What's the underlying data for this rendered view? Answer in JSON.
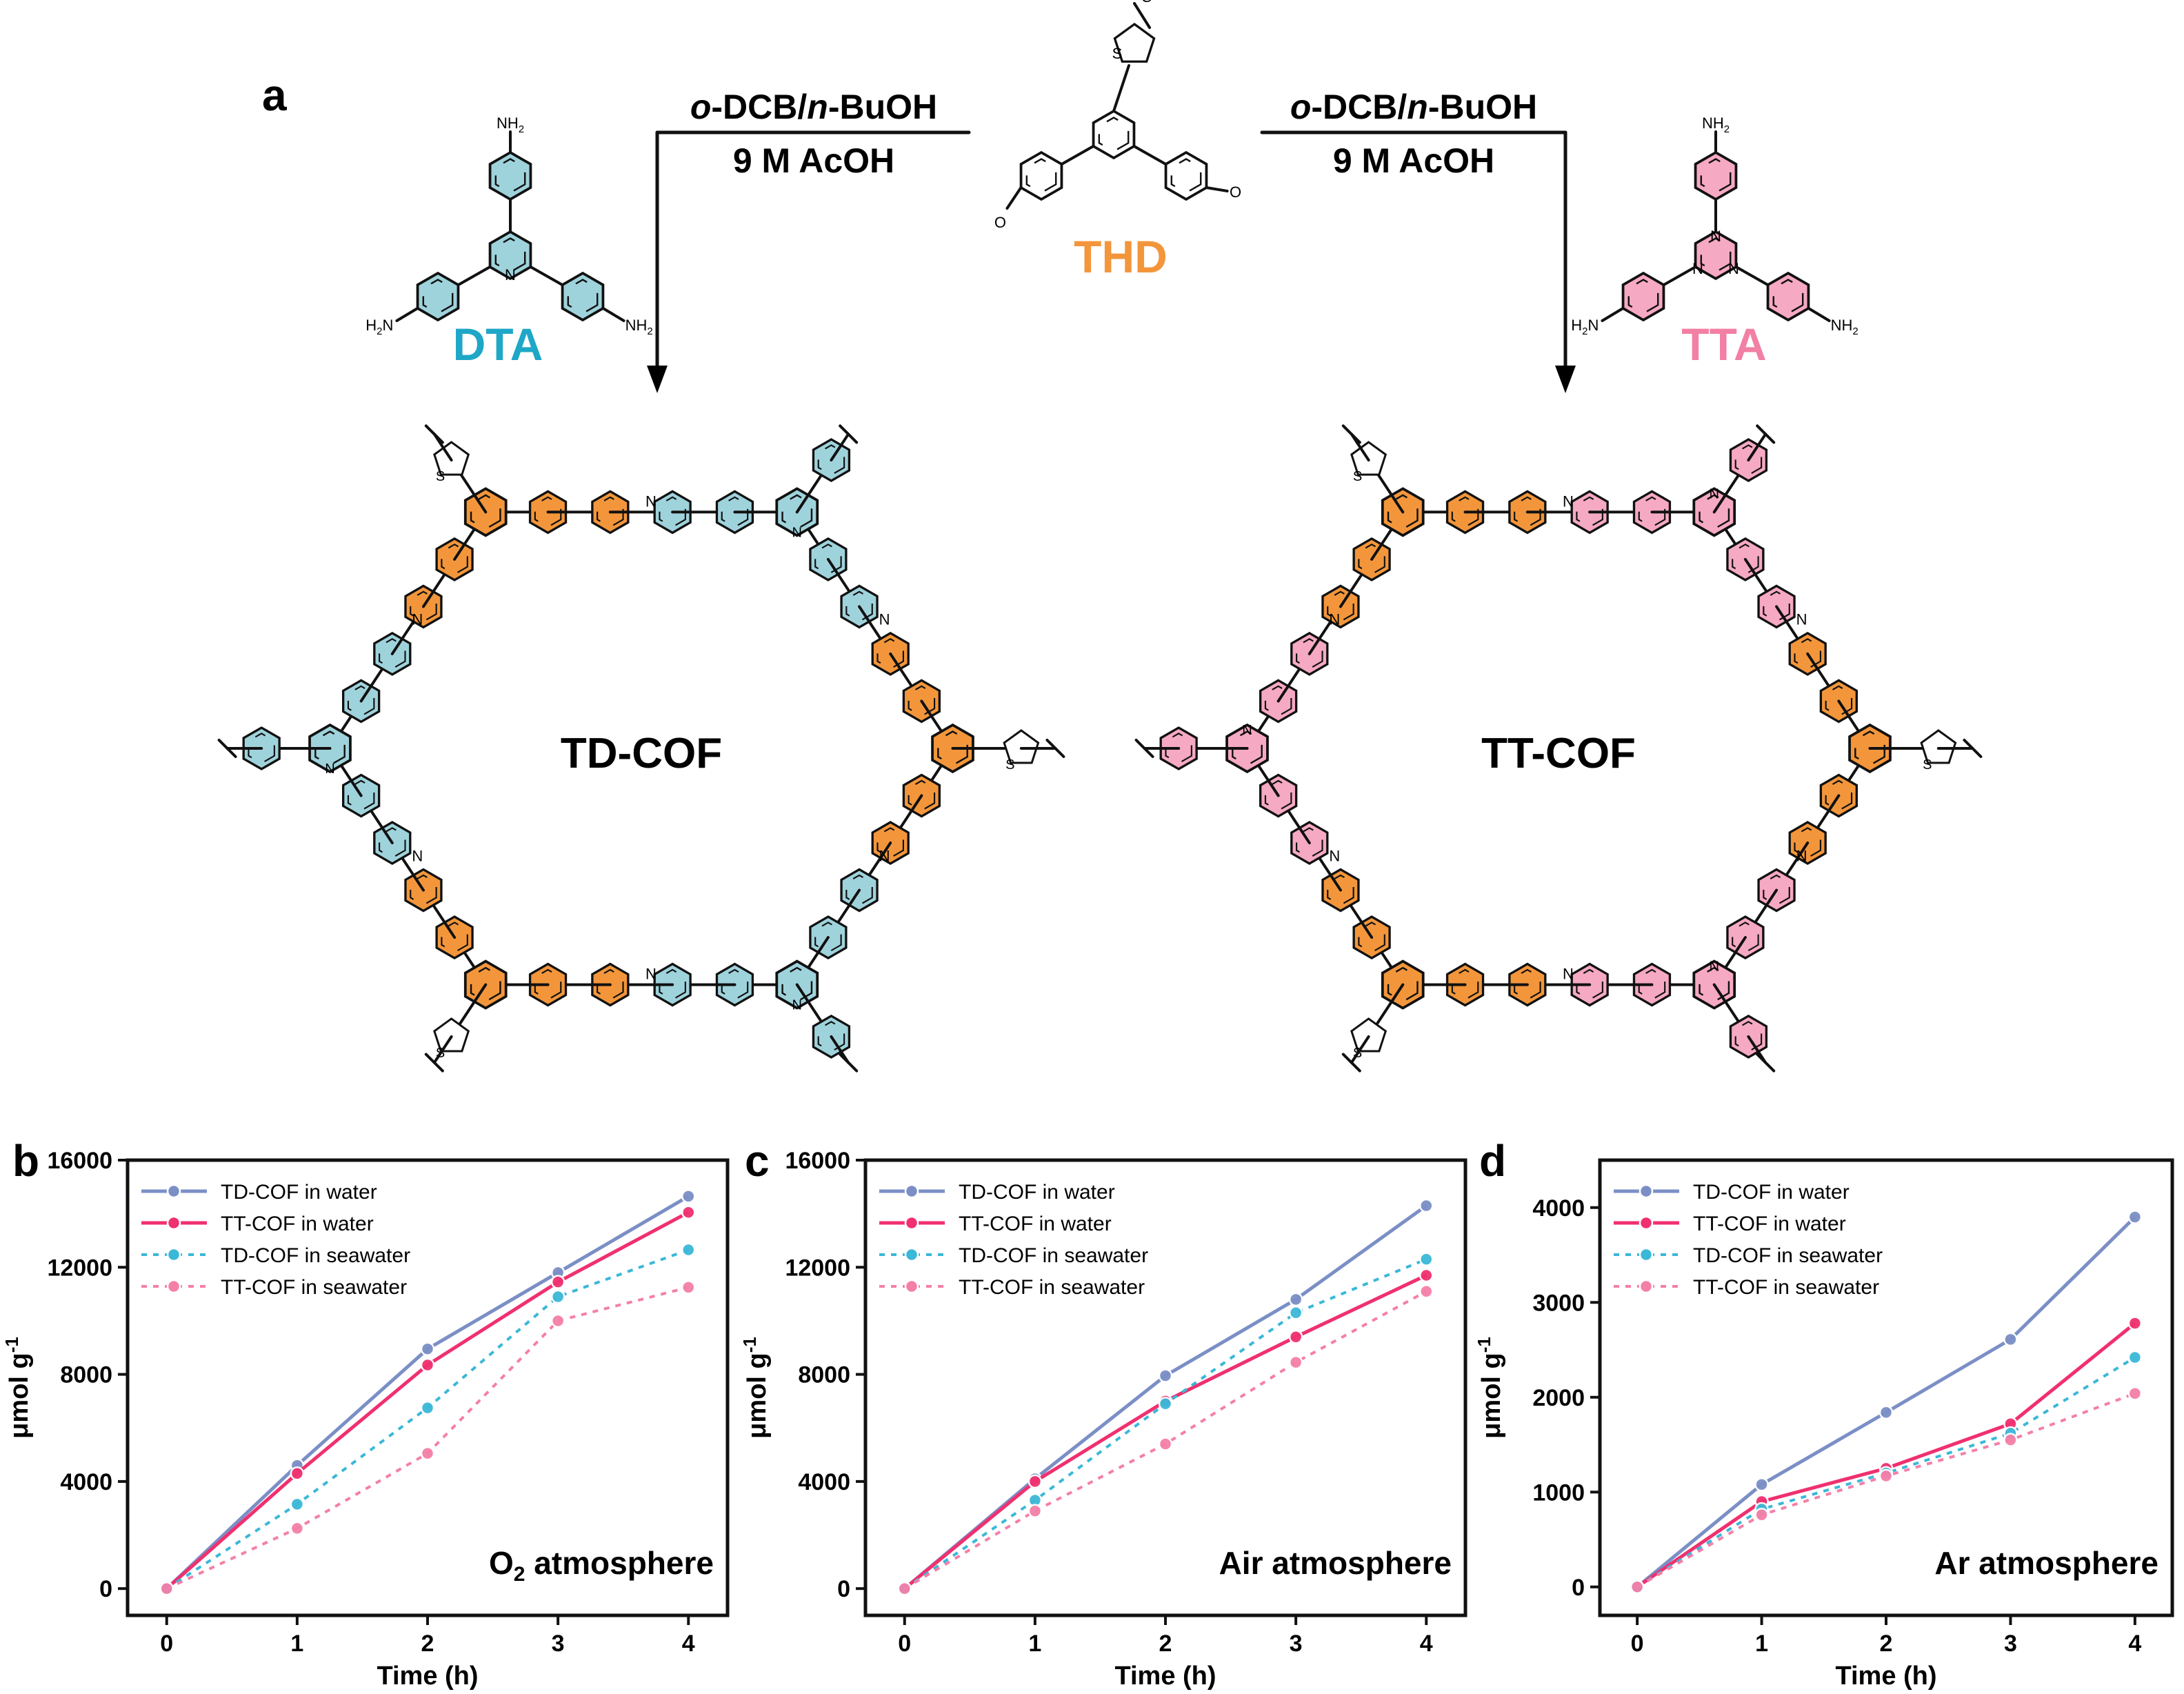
{
  "panel_a": {
    "letter": "a",
    "conditions_left": {
      "line1_a": "o",
      "line1_b": "-DCB/",
      "line1_c": "n",
      "line1_d": "-BuOH",
      "line2": "9 M  AcOH"
    },
    "conditions_right": {
      "line1_a": "o",
      "line1_b": "-DCB/",
      "line1_c": "n",
      "line1_d": "-BuOH",
      "line2": "9 M  AcOH"
    },
    "monomers": [
      {
        "id": "DTA",
        "label": "DTA",
        "color": "#1ea7c7",
        "ring_fill": "#9fd3dc"
      },
      {
        "id": "THD",
        "label": "THD",
        "color": "#f3963b",
        "ring_fill": "#f3963b"
      },
      {
        "id": "TTA",
        "label": "TTA",
        "color": "#f27fa4",
        "ring_fill": "#f6a9c2"
      }
    ],
    "products": [
      {
        "label": "TD-COF"
      },
      {
        "label": "TT-COF"
      }
    ],
    "atoms": {
      "nh2": "NH",
      "nh2_sub": "2",
      "h2n": "H",
      "h2n_sub": "2",
      "h2n_tail": "N",
      "n": "N",
      "s": "S",
      "o": "O"
    }
  },
  "legend_labels": [
    "TD-COF in water",
    "TT-COF in water",
    "TD-COF in seawater",
    "TT-COF in seawater"
  ],
  "series_colors": {
    "td_water": "#7b8fc6",
    "tt_water": "#f0306f",
    "td_sea": "#3ab8d8",
    "tt_sea": "#f47fa8"
  },
  "chart_data": [
    {
      "panel": "b",
      "type": "line",
      "title": "",
      "xlabel": "Time (h)",
      "ylabel": "μmol g",
      "ylabel_sup": "-1",
      "annotation": "O",
      "annotation_sub": "2",
      "annotation_tail": " atmosphere",
      "x": [
        0,
        1,
        2,
        3,
        4
      ],
      "xlim": [
        -0.3,
        4.3
      ],
      "ylim": [
        -1000,
        16000
      ],
      "yticks": [
        0,
        4000,
        8000,
        12000,
        16000
      ],
      "xticks": [
        0,
        1,
        2,
        3,
        4
      ],
      "legend_position": "top-left",
      "series": [
        {
          "name": "TD-COF in water",
          "style": "solid",
          "values": [
            0,
            4600,
            8950,
            11800,
            14650
          ]
        },
        {
          "name": "TT-COF in water",
          "style": "solid",
          "values": [
            0,
            4300,
            8350,
            11450,
            14050
          ]
        },
        {
          "name": "TD-COF in seawater",
          "style": "dotted",
          "values": [
            0,
            3150,
            6750,
            10900,
            12650
          ]
        },
        {
          "name": "TT-COF in seawater",
          "style": "dotted",
          "values": [
            0,
            2250,
            5050,
            10000,
            11250
          ]
        }
      ]
    },
    {
      "panel": "c",
      "type": "line",
      "title": "",
      "xlabel": "Time (h)",
      "ylabel": "μmol g",
      "ylabel_sup": "-1",
      "annotation": "Air atmosphere",
      "annotation_sub": "",
      "annotation_tail": "",
      "x": [
        0,
        1,
        2,
        3,
        4
      ],
      "xlim": [
        -0.3,
        4.3
      ],
      "ylim": [
        -1000,
        16000
      ],
      "yticks": [
        0,
        4000,
        8000,
        12000,
        16000
      ],
      "xticks": [
        0,
        1,
        2,
        3,
        4
      ],
      "legend_position": "top-left",
      "series": [
        {
          "name": "TD-COF in water",
          "style": "solid",
          "values": [
            0,
            4100,
            7950,
            10800,
            14300
          ]
        },
        {
          "name": "TT-COF in water",
          "style": "solid",
          "values": [
            0,
            4000,
            7000,
            9400,
            11700
          ]
        },
        {
          "name": "TD-COF in seawater",
          "style": "dotted",
          "values": [
            0,
            3300,
            6900,
            10300,
            12300
          ]
        },
        {
          "name": "TT-COF in seawater",
          "style": "dotted",
          "values": [
            0,
            2900,
            5400,
            8450,
            11100
          ]
        }
      ]
    },
    {
      "panel": "d",
      "type": "line",
      "title": "",
      "xlabel": "Time (h)",
      "ylabel": "μmol g",
      "ylabel_sup": "-1",
      "annotation": "Ar atmosphere",
      "annotation_sub": "",
      "annotation_tail": "",
      "x": [
        0,
        1,
        2,
        3,
        4
      ],
      "xlim": [
        -0.3,
        4.3
      ],
      "ylim": [
        -300,
        4500
      ],
      "yticks": [
        0,
        1000,
        2000,
        3000,
        4000
      ],
      "xticks": [
        0,
        1,
        2,
        3,
        4
      ],
      "legend_position": "top-left",
      "series": [
        {
          "name": "TD-COF in water",
          "style": "solid",
          "values": [
            0,
            1080,
            1840,
            2610,
            3900
          ]
        },
        {
          "name": "TT-COF in water",
          "style": "solid",
          "values": [
            0,
            900,
            1250,
            1720,
            2780
          ]
        },
        {
          "name": "TD-COF in seawater",
          "style": "dotted",
          "values": [
            0,
            820,
            1200,
            1620,
            2420
          ]
        },
        {
          "name": "TT-COF in seawater",
          "style": "dotted",
          "values": [
            0,
            760,
            1170,
            1550,
            2040
          ]
        }
      ]
    }
  ]
}
